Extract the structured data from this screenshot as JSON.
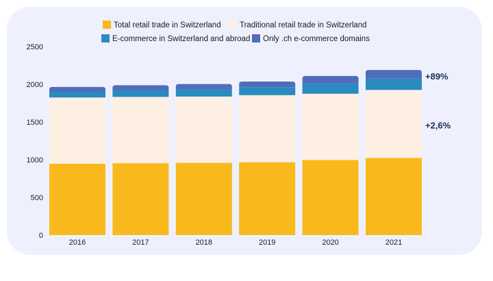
{
  "chart_data": {
    "type": "bar",
    "stacked": true,
    "categories": [
      "2016",
      "2017",
      "2018",
      "2019",
      "2020",
      "2021"
    ],
    "series": [
      {
        "name": "Total retail trade in Switzerland",
        "color": "#f9b91c",
        "values": [
          945,
          953,
          958,
          966,
          995,
          1025
        ]
      },
      {
        "name": "Traditional retail trade in Switzerland",
        "color": "#fdf0e3",
        "values": [
          880,
          880,
          880,
          890,
          880,
          900
        ]
      },
      {
        "name": "E-commerce in Switzerland and abroad",
        "color": "#2a8bbf",
        "values": [
          75,
          85,
          95,
          105,
          135,
          150
        ]
      },
      {
        "name": "Only .ch e-commerce domains",
        "color": "#4f6dbb",
        "values": [
          65,
          70,
          70,
          75,
          100,
          115
        ]
      }
    ],
    "ylim": [
      0,
      2500
    ],
    "yticks": [
      0,
      500,
      1000,
      1500,
      2000,
      2500
    ],
    "annotations": [
      {
        "text": "+89%",
        "at_value": 2100
      },
      {
        "text": "+2,6%",
        "at_value": 1450
      }
    ],
    "title": "",
    "xlabel": "",
    "ylabel": "",
    "legend_position": "top"
  }
}
